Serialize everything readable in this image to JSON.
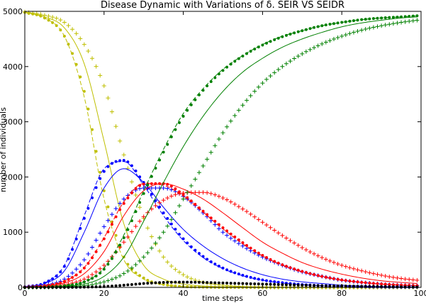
{
  "chart_data": {
    "type": "line",
    "title": "Disease Dynamic with Variations of δ. SEIR VS SEIDR",
    "xlabel": "time steps",
    "ylabel": "number of individuals",
    "xlim": [
      0,
      100
    ],
    "ylim": [
      0,
      5000
    ],
    "x_ticks": [
      "0",
      "20",
      "40",
      "60",
      "80",
      "100"
    ],
    "y_ticks": [
      "0",
      "1000",
      "2000",
      "3000",
      "4000",
      "5000"
    ],
    "grid": false,
    "legend": "none",
    "x": [
      0,
      5,
      10,
      15,
      20,
      25,
      30,
      35,
      40,
      45,
      50,
      55,
      60,
      65,
      70,
      75,
      80,
      85,
      90,
      95,
      99
    ],
    "series": [
      {
        "color": "#bfbf00",
        "style": "solid",
        "values": [
          4980,
          4900,
          4700,
          4050,
          2650,
          1150,
          400,
          150,
          60,
          25,
          10,
          5,
          0,
          0,
          0,
          0,
          0,
          0,
          0,
          0,
          0
        ]
      },
      {
        "color": "#bfbf00",
        "style": "dashed",
        "values": [
          4980,
          4880,
          4550,
          3450,
          1600,
          500,
          150,
          50,
          15,
          5,
          0,
          0,
          0,
          0,
          0,
          0,
          0,
          0,
          0,
          0,
          0
        ]
      },
      {
        "color": "#bfbf00",
        "style": "dotted",
        "values": [
          4980,
          4880,
          4550,
          3550,
          1750,
          550,
          170,
          55,
          15,
          5,
          0,
          0,
          0,
          0,
          0,
          0,
          0,
          0,
          0,
          0,
          0
        ]
      },
      {
        "color": "#bfbf00",
        "style": "plus",
        "values": [
          4990,
          4930,
          4800,
          4400,
          3650,
          2400,
          1250,
          550,
          230,
          90,
          40,
          15,
          5,
          0,
          0,
          0,
          0,
          0,
          0,
          0,
          0
        ]
      },
      {
        "color": "#0000ff",
        "style": "solid",
        "values": [
          10,
          70,
          300,
          1000,
          1800,
          2150,
          1900,
          1450,
          1050,
          750,
          520,
          350,
          230,
          150,
          100,
          70,
          40,
          25,
          15,
          10,
          5
        ]
      },
      {
        "color": "#0000ff",
        "style": "dashed",
        "values": [
          10,
          80,
          400,
          1300,
          2150,
          2280,
          1850,
          1300,
          850,
          540,
          340,
          210,
          130,
          80,
          50,
          30,
          20,
          10,
          5,
          0,
          0
        ]
      },
      {
        "color": "#0000ff",
        "style": "dotted",
        "values": [
          10,
          80,
          380,
          1250,
          2100,
          2300,
          1900,
          1350,
          880,
          560,
          350,
          220,
          135,
          85,
          52,
          32,
          20,
          12,
          7,
          4,
          3
        ]
      },
      {
        "color": "#0000ff",
        "style": "plus",
        "values": [
          5,
          40,
          150,
          500,
          1100,
          1600,
          1800,
          1800,
          1650,
          1350,
          1000,
          750,
          550,
          400,
          280,
          200,
          130,
          90,
          60,
          40,
          30
        ]
      },
      {
        "color": "#ff0000",
        "style": "solid",
        "values": [
          5,
          25,
          80,
          250,
          650,
          1300,
          1750,
          1880,
          1780,
          1600,
          1350,
          1080,
          820,
          620,
          450,
          330,
          240,
          170,
          120,
          90,
          70
        ]
      },
      {
        "color": "#ff0000",
        "style": "dashed",
        "values": [
          5,
          30,
          110,
          360,
          900,
          1550,
          1880,
          1850,
          1650,
          1360,
          1060,
          790,
          570,
          400,
          280,
          190,
          130,
          90,
          60,
          40,
          30
        ]
      },
      {
        "color": "#ff0000",
        "style": "dotted",
        "values": [
          5,
          30,
          110,
          350,
          880,
          1520,
          1870,
          1880,
          1680,
          1380,
          1080,
          810,
          580,
          410,
          290,
          200,
          135,
          92,
          62,
          42,
          32
        ]
      },
      {
        "color": "#ff0000",
        "style": "plus",
        "values": [
          5,
          15,
          50,
          150,
          400,
          820,
          1280,
          1580,
          1710,
          1720,
          1620,
          1420,
          1180,
          940,
          720,
          540,
          400,
          300,
          220,
          160,
          130
        ]
      },
      {
        "color": "#008000",
        "style": "solid",
        "values": [
          0,
          5,
          20,
          60,
          200,
          550,
          1200,
          1900,
          2550,
          3100,
          3550,
          3900,
          4150,
          4350,
          4500,
          4620,
          4720,
          4790,
          4840,
          4880,
          4900
        ]
      },
      {
        "color": "#008000",
        "style": "dashed",
        "values": [
          0,
          5,
          30,
          100,
          350,
          950,
          1750,
          2500,
          3150,
          3600,
          3950,
          4200,
          4400,
          4550,
          4650,
          4740,
          4800,
          4850,
          4880,
          4900,
          4920
        ]
      },
      {
        "color": "#008000",
        "style": "dotted",
        "values": [
          0,
          5,
          30,
          100,
          330,
          900,
          1700,
          2450,
          3100,
          3570,
          3930,
          4190,
          4390,
          4540,
          4650,
          4740,
          4800,
          4850,
          4880,
          4900,
          4920
        ]
      },
      {
        "color": "#008000",
        "style": "plus",
        "values": [
          0,
          2,
          10,
          30,
          100,
          250,
          550,
          1000,
          1600,
          2200,
          2800,
          3300,
          3700,
          4000,
          4230,
          4410,
          4550,
          4660,
          4740,
          4800,
          4840
        ]
      },
      {
        "color": "#000000",
        "style": "dotted",
        "values": [
          0,
          0,
          0,
          5,
          15,
          40,
          70,
          90,
          95,
          90,
          80,
          70,
          60,
          50,
          40,
          30,
          25,
          20,
          15,
          10,
          8
        ]
      }
    ]
  }
}
